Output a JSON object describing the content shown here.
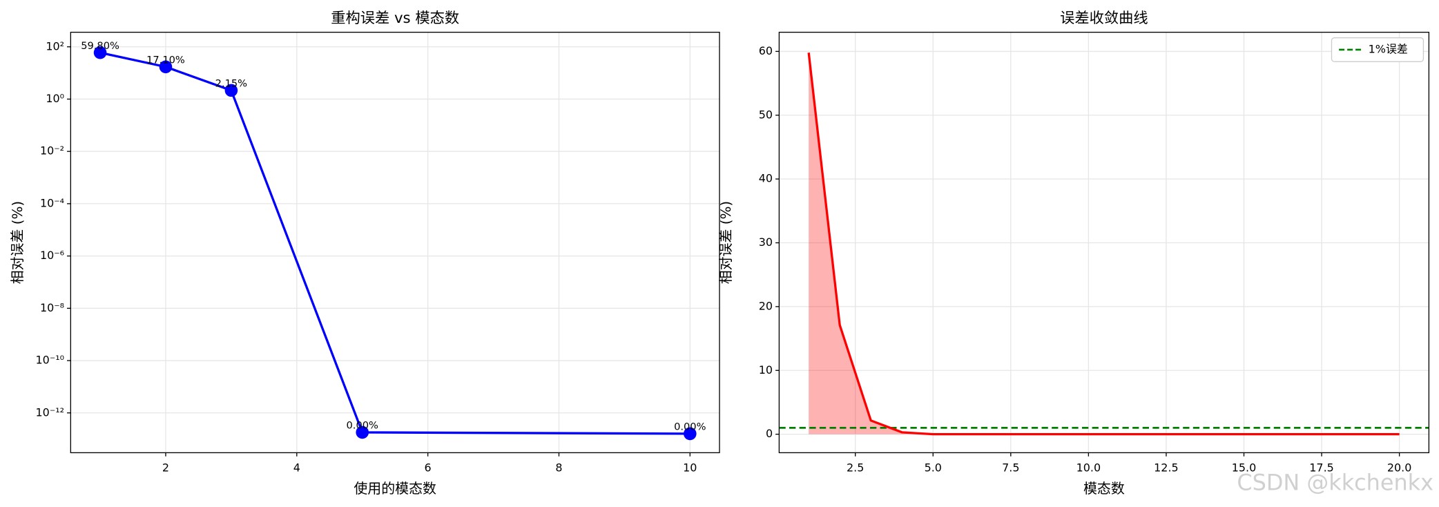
{
  "chart_data": [
    {
      "type": "line",
      "title": "重构误差 vs 模态数",
      "xlabel": "使用的模态数",
      "ylabel": "相对误差 (%)",
      "x": [
        1,
        2,
        3,
        5,
        10
      ],
      "values": [
        59.8,
        17.1,
        2.15,
        1.8e-13,
        1.6e-13
      ],
      "value_labels": [
        "59.80%",
        "17.10%",
        "2.15%",
        "0.00%",
        "0.00%"
      ],
      "color": "#0000ff",
      "markers": true,
      "log_y": true,
      "grid": true,
      "xlim": [
        0.55,
        10.45
      ],
      "xticks": [
        2,
        4,
        6,
        8,
        10
      ],
      "ylim": [
        3e-14,
        360
      ],
      "yticks": [
        {
          "value": 100,
          "label": "10²"
        },
        {
          "value": 1,
          "label": "10⁰"
        },
        {
          "value": 0.01,
          "label": "10⁻²"
        },
        {
          "value": 0.0001,
          "label": "10⁻⁴"
        },
        {
          "value": 1e-06,
          "label": "10⁻⁶"
        },
        {
          "value": 1e-08,
          "label": "10⁻⁸"
        },
        {
          "value": 1e-10,
          "label": "10⁻¹⁰"
        },
        {
          "value": 1e-12,
          "label": "10⁻¹²"
        }
      ]
    },
    {
      "type": "line",
      "title": "误差收敛曲线",
      "xlabel": "模态数",
      "ylabel": "相对误差 (%)",
      "x": [
        1,
        2,
        3,
        4,
        5,
        6,
        7,
        8,
        9,
        10,
        11,
        12,
        13,
        14,
        15,
        16,
        17,
        18,
        19,
        20
      ],
      "values": [
        59.8,
        17.1,
        2.15,
        0.3,
        0,
        0,
        0,
        0,
        0,
        0,
        0,
        0,
        0,
        0,
        0,
        0,
        0,
        0,
        0,
        0
      ],
      "color": "#ff0000",
      "fill_color": "#ff0000",
      "markers": false,
      "log_y": false,
      "grid": true,
      "xlim": [
        0.05,
        20.95
      ],
      "xticks": [
        2.5,
        {
          "value": 5,
          "label": "5.0"
        },
        7.5,
        {
          "value": 10,
          "label": "10.0"
        },
        12.5,
        {
          "value": 15,
          "label": "15.0"
        },
        17.5,
        {
          "value": 20,
          "label": "20.0"
        }
      ],
      "ylim": [
        -2.9,
        63
      ],
      "yticks": [
        0,
        10,
        20,
        30,
        40,
        50,
        60
      ],
      "reference_line": {
        "name": "1%误差",
        "value": 1,
        "color": "#008000"
      },
      "legend": "upper right"
    }
  ],
  "watermark": "CSDN @kkchenkx"
}
